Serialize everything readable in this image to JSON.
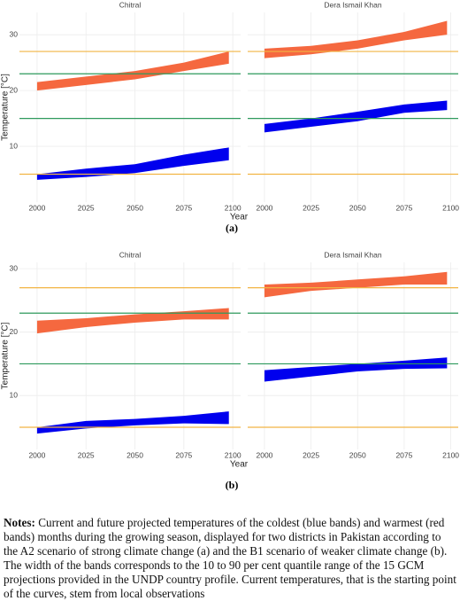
{
  "chart_data": [
    {
      "type": "band",
      "title": "Chitral",
      "xlim": [
        1991,
        2104
      ],
      "ylim": [
        0,
        34
      ],
      "xticks": [
        2000,
        2025,
        2050,
        2075,
        2100
      ],
      "yticks": [
        10,
        20,
        30
      ],
      "grid": true,
      "x": [
        2000,
        2025,
        2050,
        2075,
        2098
      ],
      "hlines": [
        {
          "value": 27,
          "color": "#f2b443"
        },
        {
          "value": 23,
          "color": "#2e9a5c"
        },
        {
          "value": 15,
          "color": "#2e9a5c"
        },
        {
          "value": 5,
          "color": "#f2b443"
        }
      ],
      "series": [
        {
          "color": "#f5683f",
          "lower": [
            20,
            21,
            22,
            23.5,
            24.8
          ],
          "upper": [
            21.5,
            22.5,
            23.5,
            25,
            27
          ]
        },
        {
          "color": "#0000ee",
          "lower": [
            4,
            4.5,
            5.2,
            6.5,
            7.5
          ],
          "upper": [
            5,
            6,
            6.8,
            8.5,
            9.8
          ]
        }
      ]
    },
    {
      "type": "band",
      "title": "Dera Ismail Khan",
      "xlim": [
        1991,
        2104
      ],
      "ylim": [
        0,
        34
      ],
      "xticks": [
        2000,
        2025,
        2050,
        2075,
        2100
      ],
      "yticks": [
        10,
        20,
        30
      ],
      "grid": true,
      "x": [
        2000,
        2025,
        2050,
        2075,
        2098
      ],
      "hlines": [
        {
          "value": 27,
          "color": "#f2b443"
        },
        {
          "value": 23,
          "color": "#2e9a5c"
        },
        {
          "value": 15,
          "color": "#2e9a5c"
        },
        {
          "value": 5,
          "color": "#f2b443"
        }
      ],
      "series": [
        {
          "color": "#f5683f",
          "lower": [
            25.8,
            26.5,
            27.5,
            29,
            30
          ],
          "upper": [
            27.5,
            28,
            29,
            30.5,
            32.5
          ]
        },
        {
          "color": "#0000ee",
          "lower": [
            12.5,
            13.5,
            14.5,
            16,
            16.5
          ],
          "upper": [
            14,
            15,
            16.2,
            17.5,
            18.2
          ]
        }
      ]
    },
    {
      "type": "band",
      "title": "Chitral",
      "xlim": [
        1991,
        2104
      ],
      "ylim": [
        1.5,
        31
      ],
      "xticks": [
        2000,
        2025,
        2050,
        2075,
        2100
      ],
      "yticks": [
        10,
        20,
        30
      ],
      "grid": true,
      "x": [
        2000,
        2025,
        2050,
        2075,
        2098
      ],
      "hlines": [
        {
          "value": 27,
          "color": "#f2b443"
        },
        {
          "value": 23,
          "color": "#2e9a5c"
        },
        {
          "value": 15,
          "color": "#2e9a5c"
        },
        {
          "value": 5,
          "color": "#f2b443"
        }
      ],
      "series": [
        {
          "color": "#f5683f",
          "lower": [
            19.8,
            20.8,
            21.5,
            22,
            22
          ],
          "upper": [
            21.8,
            22.2,
            22.8,
            23.3,
            23.8
          ]
        },
        {
          "color": "#0000ee",
          "lower": [
            4,
            4.8,
            5.3,
            5.6,
            5.5
          ],
          "upper": [
            5,
            6,
            6.3,
            6.8,
            7.5
          ]
        }
      ]
    },
    {
      "type": "band",
      "title": "Dera Ismail Khan",
      "xlim": [
        1991,
        2104
      ],
      "ylim": [
        1.5,
        31
      ],
      "xticks": [
        2000,
        2025,
        2050,
        2075,
        2100
      ],
      "yticks": [
        10,
        20,
        30
      ],
      "grid": true,
      "x": [
        2000,
        2025,
        2050,
        2075,
        2098
      ],
      "hlines": [
        {
          "value": 27,
          "color": "#f2b443"
        },
        {
          "value": 23,
          "color": "#2e9a5c"
        },
        {
          "value": 15,
          "color": "#2e9a5c"
        },
        {
          "value": 5,
          "color": "#f2b443"
        }
      ],
      "series": [
        {
          "color": "#f5683f",
          "lower": [
            25.5,
            26.5,
            27,
            27.5,
            27.5
          ],
          "upper": [
            27.5,
            27.8,
            28.3,
            28.8,
            29.5
          ]
        },
        {
          "color": "#0000ee",
          "lower": [
            12.2,
            13,
            13.8,
            14.2,
            14.3
          ],
          "upper": [
            14,
            14.5,
            15,
            15.5,
            16
          ]
        }
      ]
    }
  ],
  "panels": [
    {
      "label": "(a)",
      "x_label": "Year",
      "y_label": "Temperature [°C]"
    },
    {
      "label": "(b)",
      "x_label": "Year",
      "y_label": "Temperature [°C]"
    }
  ],
  "notes": {
    "heading": "Notes:",
    "text": "Current and future projected temperatures of the coldest (blue bands) and warmest (red bands) months during the growing season, displayed for two districts in Pakistan according to the A2 scenario of strong climate change (a) and the B1 scenario of weaker climate change (b). The width of the bands corresponds to the 10 to 90 per cent quantile range of the 15 GCM projections provided in the UNDP country profile. Current temperatures, that is the starting point of the curves, stem from local observations"
  }
}
